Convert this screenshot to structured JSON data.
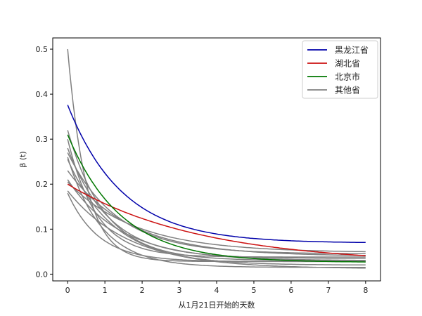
{
  "chart_data": {
    "type": "line",
    "title": "",
    "xlabel": "从1月21日开始的天数",
    "ylabel": "β (t)",
    "xlim": [
      -0.4,
      8.4
    ],
    "ylim": [
      -0.015,
      0.525
    ],
    "xticks": [
      0,
      1,
      2,
      3,
      4,
      5,
      6,
      7,
      8
    ],
    "xtick_labels": [
      "0",
      "1",
      "2",
      "3",
      "4",
      "5",
      "6",
      "7",
      "8"
    ],
    "yticks": [
      0.0,
      0.1,
      0.2,
      0.3,
      0.4,
      0.5
    ],
    "ytick_labels": [
      "0.0",
      "0.1",
      "0.2",
      "0.3",
      "0.4",
      "0.5"
    ],
    "grid": false,
    "legend_position": "upper right",
    "x": [
      0,
      0.5,
      1,
      1.5,
      2,
      2.5,
      3,
      3.5,
      4,
      4.5,
      5,
      5.5,
      6,
      6.5,
      7,
      7.5,
      8
    ],
    "model": "beta(t) = b + (a - b) * exp(-k t)",
    "series": [
      {
        "name": "黑龙江省",
        "color": "#0000aa",
        "legend": true,
        "a": 0.376,
        "b": 0.069,
        "k": 0.68
      },
      {
        "name": "湖北省",
        "color": "#cc1111",
        "legend": true,
        "a": 0.2,
        "b": 0.022,
        "k": 0.28
      },
      {
        "name": "北京市",
        "color": "#007700",
        "legend": true,
        "a": 0.31,
        "b": 0.026,
        "k": 0.7
      },
      {
        "name": "其他省",
        "color": "#808080",
        "legend": true,
        "a": 0.5,
        "b": 0.028,
        "k": 2.0
      },
      {
        "name": "其他省",
        "color": "#808080",
        "legend": false,
        "a": 0.32,
        "b": 0.03,
        "k": 1.0
      },
      {
        "name": "其他省",
        "color": "#808080",
        "legend": false,
        "a": 0.28,
        "b": 0.035,
        "k": 0.9
      },
      {
        "name": "其他省",
        "color": "#808080",
        "legend": false,
        "a": 0.27,
        "b": 0.045,
        "k": 0.75
      },
      {
        "name": "其他省",
        "color": "#808080",
        "legend": false,
        "a": 0.255,
        "b": 0.02,
        "k": 0.8
      },
      {
        "name": "其他省",
        "color": "#808080",
        "legend": false,
        "a": 0.23,
        "b": 0.04,
        "k": 0.6
      },
      {
        "name": "其他省",
        "color": "#808080",
        "legend": false,
        "a": 0.21,
        "b": 0.03,
        "k": 0.7
      },
      {
        "name": "其他省",
        "color": "#808080",
        "legend": false,
        "a": 0.205,
        "b": 0.048,
        "k": 0.55
      },
      {
        "name": "其他省",
        "color": "#808080",
        "legend": false,
        "a": 0.185,
        "b": 0.012,
        "k": 0.6
      },
      {
        "name": "其他省",
        "color": "#808080",
        "legend": false,
        "a": 0.18,
        "b": 0.028,
        "k": 1.2
      },
      {
        "name": "其他省",
        "color": "#808080",
        "legend": false,
        "a": 0.26,
        "b": 0.015,
        "k": 1.1
      },
      {
        "name": "其他省",
        "color": "#808080",
        "legend": false,
        "a": 0.3,
        "b": 0.038,
        "k": 1.3
      }
    ],
    "legend": [
      {
        "label": "黑龙江省",
        "color": "#0000aa"
      },
      {
        "label": "湖北省",
        "color": "#cc1111"
      },
      {
        "label": "北京市",
        "color": "#007700"
      },
      {
        "label": "其他省",
        "color": "#808080"
      }
    ]
  }
}
